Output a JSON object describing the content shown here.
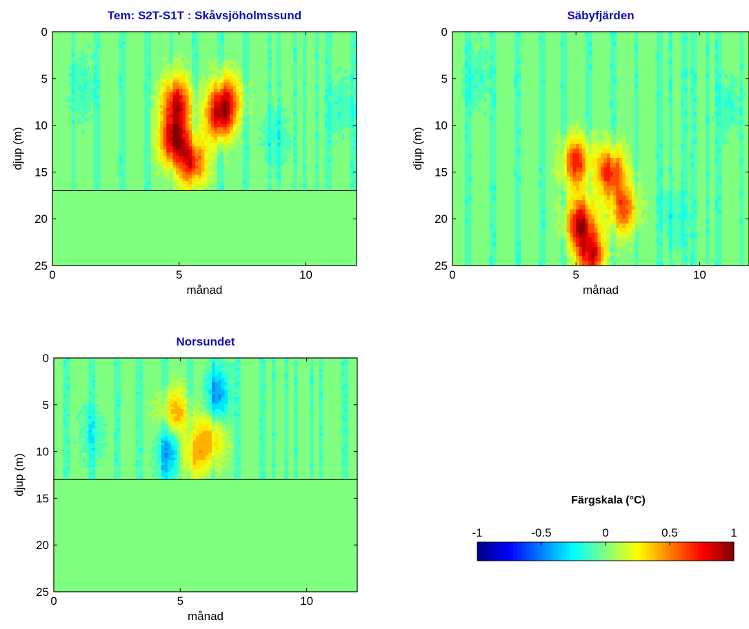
{
  "chart_data": [
    {
      "type": "heatmap",
      "title": "Tem: S2T-S1T : Skåvsjöholmssund",
      "xlabel": "månad",
      "ylabel": "djup (m)",
      "xlim": [
        0,
        12
      ],
      "ylim": [
        0,
        25
      ],
      "y_reversed": true,
      "xticks": [
        0,
        5,
        10
      ],
      "yticks": [
        0,
        5,
        10,
        15,
        20,
        25
      ],
      "max_depth": 17,
      "hotspots": [
        {
          "x": 4.9,
          "y": 7.5,
          "v": 0.8
        },
        {
          "x": 4.8,
          "y": 11.5,
          "v": 0.9
        },
        {
          "x": 5.5,
          "y": 14.0,
          "v": 0.75
        },
        {
          "x": 6.6,
          "y": 9.0,
          "v": 0.8
        },
        {
          "x": 6.9,
          "y": 7.0,
          "v": 0.5
        }
      ],
      "coldspots": [
        {
          "x": 1.2,
          "y": 6.0,
          "v": -0.15
        },
        {
          "x": 8.8,
          "y": 11.5,
          "v": -0.15
        },
        {
          "x": 11.4,
          "y": 8.0,
          "v": -0.15
        }
      ],
      "grid": false
    },
    {
      "type": "heatmap",
      "title": "Säbyfjärden",
      "xlabel": "månad",
      "ylabel": "djup (m)",
      "xlim": [
        0,
        12
      ],
      "ylim": [
        0,
        25
      ],
      "y_reversed": true,
      "xticks": [
        0,
        5,
        10
      ],
      "yticks": [
        0,
        5,
        10,
        15,
        20,
        25
      ],
      "max_depth": 25,
      "hotspots": [
        {
          "x": 5.0,
          "y": 14.0,
          "v": 0.7
        },
        {
          "x": 5.2,
          "y": 20.5,
          "v": 0.9
        },
        {
          "x": 6.4,
          "y": 15.0,
          "v": 0.75
        },
        {
          "x": 6.9,
          "y": 19.0,
          "v": 0.6
        },
        {
          "x": 5.6,
          "y": 24.0,
          "v": 0.8
        }
      ],
      "coldspots": [
        {
          "x": 1.0,
          "y": 5.0,
          "v": -0.15
        },
        {
          "x": 9.0,
          "y": 20.0,
          "v": -0.15
        },
        {
          "x": 11.2,
          "y": 8.0,
          "v": -0.15
        }
      ],
      "grid": false
    },
    {
      "type": "heatmap",
      "title": "Norsundet",
      "xlabel": "månad",
      "ylabel": "djup (m)",
      "xlim": [
        0,
        12
      ],
      "ylim": [
        0,
        25
      ],
      "y_reversed": true,
      "xticks": [
        0,
        5,
        10
      ],
      "yticks": [
        0,
        5,
        10,
        15,
        20,
        25
      ],
      "max_depth": 13,
      "hotspots": [
        {
          "x": 4.8,
          "y": 6.0,
          "v": 0.45
        },
        {
          "x": 6.2,
          "y": 8.5,
          "v": 0.4
        },
        {
          "x": 5.5,
          "y": 10.5,
          "v": 0.35
        }
      ],
      "coldspots": [
        {
          "x": 4.6,
          "y": 10.0,
          "v": -0.45
        },
        {
          "x": 6.5,
          "y": 4.0,
          "v": -0.45
        },
        {
          "x": 1.5,
          "y": 8.0,
          "v": -0.15
        }
      ],
      "grid": false
    }
  ],
  "colorbar": {
    "title": "Färgskala (°C)",
    "range": [
      -1,
      1
    ],
    "ticks": [
      "-1",
      "-0.5",
      "0",
      "0.5",
      "1"
    ],
    "colormap": "jet"
  },
  "colors": {
    "title_color": "#1010b0",
    "background": "#ffffff"
  }
}
